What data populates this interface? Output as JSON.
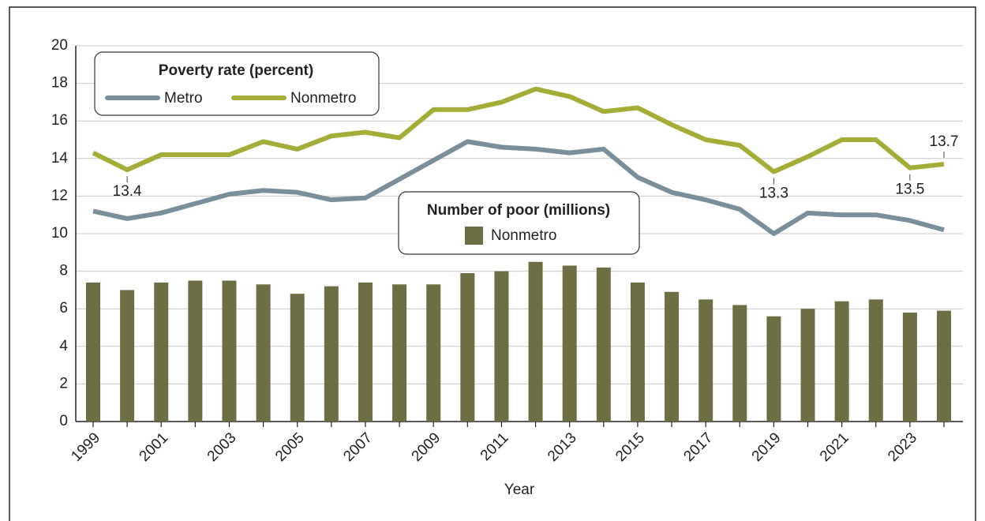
{
  "chart_data": {
    "type": "combo",
    "xlabel": "Year",
    "categories": [
      "1999",
      null,
      "2001",
      null,
      "2003",
      null,
      "2005",
      null,
      "2007",
      null,
      "2009",
      null,
      "2011",
      null,
      "2013",
      null,
      "2015",
      null,
      "2017",
      null,
      "2019",
      null,
      "2021",
      null,
      "2023",
      null
    ],
    "line_legend_title": "Poverty rate (percent)",
    "bar_legend_title": "Number of poor (millions)",
    "series": [
      {
        "name": "Metro",
        "type": "line",
        "color": "#7a8f99",
        "values": [
          11.2,
          10.8,
          11.1,
          11.6,
          12.1,
          12.3,
          12.2,
          11.8,
          11.9,
          12.9,
          13.9,
          14.9,
          14.6,
          14.5,
          14.3,
          14.5,
          13.0,
          12.2,
          11.8,
          11.3,
          10.0,
          11.1,
          11.0,
          11.0,
          10.7,
          10.2
        ]
      },
      {
        "name": "Nonmetro",
        "type": "line",
        "color": "#a3ad37",
        "values": [
          14.3,
          13.4,
          14.2,
          14.2,
          14.2,
          14.9,
          14.5,
          15.2,
          15.4,
          15.1,
          16.6,
          16.6,
          17.0,
          17.7,
          17.3,
          16.5,
          16.7,
          15.8,
          15.0,
          14.7,
          13.3,
          14.1,
          15.0,
          15.0,
          13.5,
          13.7
        ],
        "value_labels": [
          null,
          "13.4",
          null,
          null,
          null,
          null,
          null,
          null,
          null,
          null,
          null,
          null,
          null,
          null,
          null,
          null,
          null,
          null,
          null,
          null,
          "13.3",
          null,
          null,
          null,
          "13.5",
          "13.7"
        ]
      },
      {
        "name": "Nonmetro",
        "type": "bar",
        "color": "#6e6e45",
        "values": [
          7.4,
          7.0,
          7.4,
          7.5,
          7.5,
          7.3,
          6.8,
          7.2,
          7.4,
          7.3,
          7.3,
          7.9,
          8.0,
          8.5,
          8.3,
          8.2,
          7.4,
          6.9,
          6.5,
          6.2,
          5.6,
          6.0,
          6.4,
          6.5,
          5.8,
          5.9
        ]
      }
    ],
    "ylim": [
      0,
      20
    ],
    "yticks": [
      0,
      2,
      4,
      6,
      8,
      10,
      12,
      14,
      16,
      18,
      20
    ],
    "grid": true
  }
}
